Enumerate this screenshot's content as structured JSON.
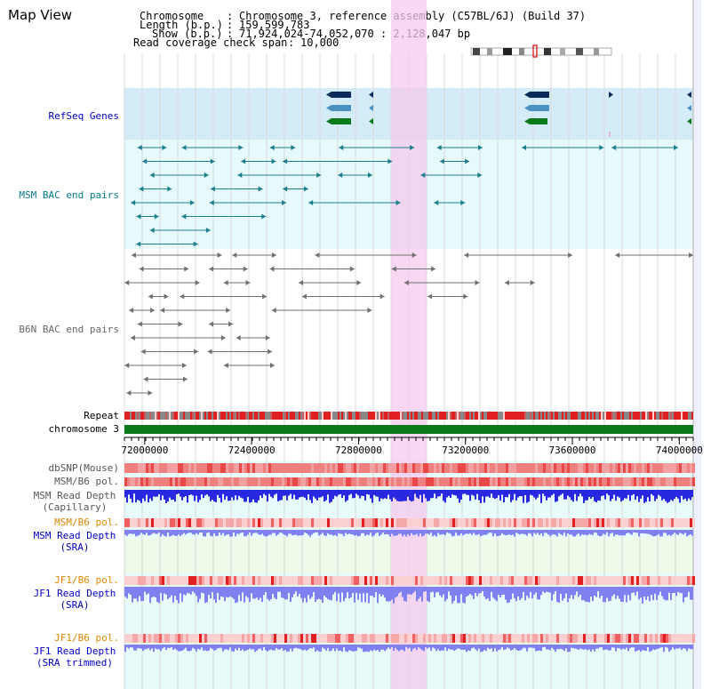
{
  "view_title": "Map View",
  "header": {
    "chromosome_label": "Chromosome",
    "chromosome_value": "Chromosome 3, reference assembly (C57BL/6J) (Build 37)",
    "length_label": "Length (b.p.)",
    "length_value": "159,599,783",
    "show_label": "Show (b.p.)",
    "show_value": "71,924,024-74,052,070 : 2,128,047 bp",
    "coverage_label": "Read coverage check span",
    "coverage_value": "10,000"
  },
  "tracks": {
    "refseq": "RefSeq Genes",
    "msm_bac": "MSM BAC end pairs",
    "b6n_bac": "B6N BAC end pairs",
    "repeat": "Repeat",
    "chromosome": "chromosome 3",
    "dbsnp": "dbSNP(Mouse)",
    "msm_b6_pol_1": "MSM/B6 pol.",
    "msm_depth_cap": "MSM Read Depth\n(Capillary)",
    "msm_b6_pol_2": "MSM/B6 pol.",
    "msm_depth_sra": "MSM Read Depth\n(SRA)",
    "jf1_b6_pol_1": "JF1/B6 pol.",
    "jf1_depth_sra": "JF1 Read Depth\n(SRA)",
    "jf1_b6_pol_2": "JF1/B6 pol.",
    "jf1_depth_trim": "JF1 Read Depth\n(SRA trimmed)"
  },
  "axis": {
    "ticks": [
      "72000000",
      "72400000",
      "72800000",
      "73200000",
      "73600000",
      "74000000"
    ],
    "tick_values": [
      72000000,
      72400000,
      72800000,
      73200000,
      73600000,
      74000000
    ],
    "range": [
      71924024,
      74052070
    ]
  },
  "colors": {
    "refseq_bg": "#d4ecf8",
    "msm_bg": "#e6f9fb",
    "highlight": "#f5c9ee",
    "msm_line": "#1d7f8e",
    "b6n_line": "#707070",
    "dark_navy": "#0a2a5a",
    "mid_blue": "#4a90c0",
    "green": "#0a7a1a",
    "label_blue": "#0000c8",
    "label_teal": "#007a8a",
    "label_gray": "#666666",
    "label_orange": "#e08800",
    "depth_blue": "#2828e0",
    "depth_light": "#8080f0",
    "pol_red": "#f04040"
  }
}
